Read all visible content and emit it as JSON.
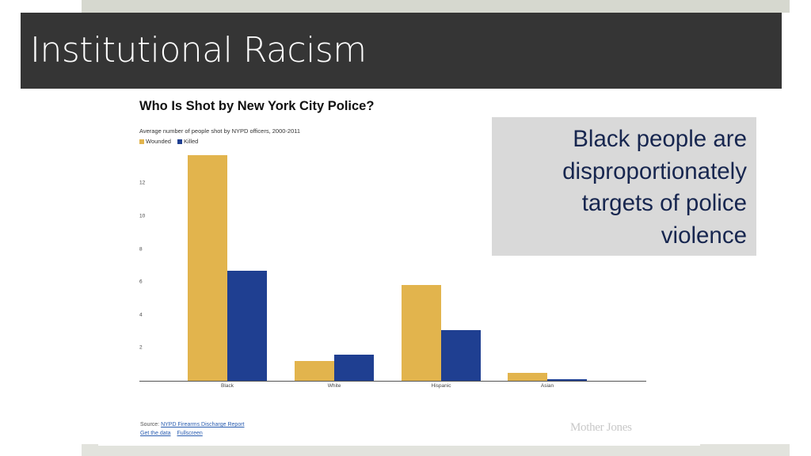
{
  "slide": {
    "title": "Institutional Racism",
    "callout": "Black people are\ndisproportionately\ntargets of police\nviolence",
    "colors": {
      "title_bar": "#353535",
      "title_text": "#ffffff",
      "callout_bg": "#d9d9d9",
      "callout_text": "#17264f",
      "band": "#d6d8cf"
    }
  },
  "chart": {
    "title": "Who Is Shot by New York City Police?",
    "subtitle": "Average number of people shot by NYPD officers, 2000-2011",
    "legend": [
      {
        "label": "Wounded",
        "color": "#e2b44d"
      },
      {
        "label": "Killed",
        "color": "#1f3f91"
      }
    ],
    "y_ticks": [
      "2",
      "4",
      "6",
      "8",
      "10",
      "12"
    ],
    "x_labels": [
      "Black",
      "White",
      "Hispanic",
      "Asian"
    ],
    "footer": {
      "source_prefix": "Source:",
      "source_link": "NYPD Firearms Discharge Report",
      "get_data": "Get the data",
      "fullscreen": "Fullscreen",
      "brand": "Mother Jones"
    }
  },
  "chart_data": {
    "type": "bar",
    "title": "Who Is Shot by New York City Police?",
    "subtitle": "Average number of people shot by NYPD officers, 2000-2011",
    "xlabel": "",
    "ylabel": "",
    "categories": [
      "Black",
      "White",
      "Hispanic",
      "Asian"
    ],
    "series": [
      {
        "name": "Wounded",
        "color": "#e2b44d",
        "values": [
          13.7,
          1.2,
          5.8,
          0.5
        ]
      },
      {
        "name": "Killed",
        "color": "#1f3f91",
        "values": [
          6.7,
          1.6,
          3.1,
          0.1
        ]
      }
    ],
    "ylim": [
      0,
      14
    ],
    "y_ticks": [
      2,
      4,
      6,
      8,
      10,
      12
    ],
    "grid": false,
    "legend_position": "top-left"
  }
}
